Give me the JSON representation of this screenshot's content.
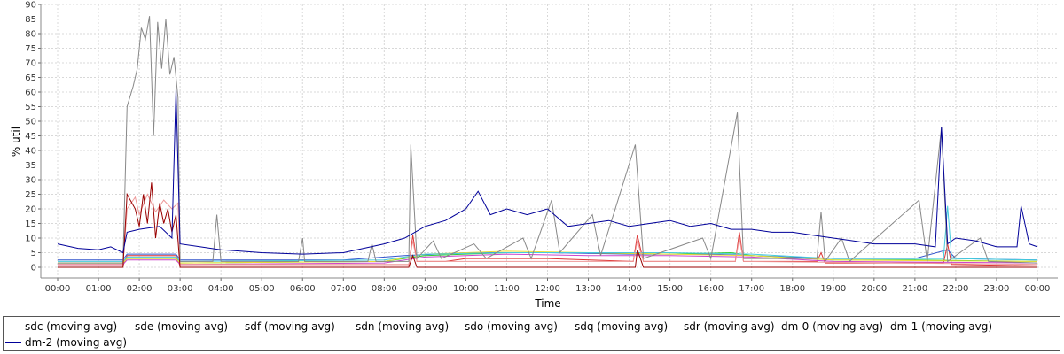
{
  "chart_data": {
    "type": "line",
    "xlabel": "Time",
    "ylabel": "% util",
    "ylim": [
      0,
      90
    ],
    "yticks": [
      0,
      5,
      10,
      15,
      20,
      25,
      30,
      35,
      40,
      45,
      50,
      55,
      60,
      65,
      70,
      75,
      80,
      85,
      90
    ],
    "xlim": [
      0,
      24
    ],
    "xticks": [
      "00:00",
      "01:00",
      "02:00",
      "03:00",
      "04:00",
      "05:00",
      "06:00",
      "07:00",
      "08:00",
      "09:00",
      "10:00",
      "11:00",
      "12:00",
      "13:00",
      "14:00",
      "15:00",
      "16:00",
      "17:00",
      "18:00",
      "19:00",
      "20:00",
      "21:00",
      "22:00",
      "23:00",
      "00:00"
    ],
    "grid": true,
    "legend_position": "bottom",
    "series": [
      {
        "name": "sdc (moving avg)",
        "color": "#dd3333",
        "points": [
          [
            0,
            0.5
          ],
          [
            1.6,
            0.5
          ],
          [
            1.7,
            4
          ],
          [
            2.1,
            4
          ],
          [
            2.9,
            4
          ],
          [
            3.0,
            0.5
          ],
          [
            8.6,
            0.5
          ],
          [
            8.7,
            11
          ],
          [
            8.8,
            2
          ],
          [
            9.5,
            2
          ],
          [
            10,
            3
          ],
          [
            12,
            3
          ],
          [
            14.1,
            2
          ],
          [
            14.2,
            11
          ],
          [
            14.35,
            2
          ],
          [
            16.6,
            2
          ],
          [
            16.7,
            12
          ],
          [
            16.8,
            2
          ],
          [
            18.6,
            2
          ],
          [
            18.7,
            5
          ],
          [
            18.8,
            1.5
          ],
          [
            21.7,
            1.5
          ],
          [
            21.8,
            8
          ],
          [
            21.9,
            1
          ],
          [
            24,
            0.5
          ]
        ]
      },
      {
        "name": "sde (moving avg)",
        "color": "#3355cc",
        "points": [
          [
            0,
            2.5
          ],
          [
            1.6,
            2.5
          ],
          [
            1.7,
            4.5
          ],
          [
            2.9,
            4.5
          ],
          [
            3.0,
            2.5
          ],
          [
            7,
            2.5
          ],
          [
            8.5,
            4
          ],
          [
            10,
            5
          ],
          [
            12,
            5
          ],
          [
            14,
            4.5
          ],
          [
            16,
            4.5
          ],
          [
            17,
            4
          ],
          [
            19,
            3
          ],
          [
            21,
            3
          ],
          [
            21.8,
            6
          ],
          [
            22,
            3
          ],
          [
            24,
            2.5
          ]
        ]
      },
      {
        "name": "sdf (moving avg)",
        "color": "#33cc33",
        "points": [
          [
            0,
            1.5
          ],
          [
            1.6,
            1.5
          ],
          [
            1.7,
            3
          ],
          [
            2.9,
            3
          ],
          [
            3.0,
            1.5
          ],
          [
            8,
            2
          ],
          [
            9,
            4
          ],
          [
            11,
            5
          ],
          [
            13,
            5
          ],
          [
            15,
            4.5
          ],
          [
            16.5,
            5
          ],
          [
            17,
            4
          ],
          [
            19,
            2.5
          ],
          [
            21,
            2.5
          ],
          [
            24,
            2
          ]
        ]
      },
      {
        "name": "sdn (moving avg)",
        "color": "#eedd33",
        "points": [
          [
            0,
            1.5
          ],
          [
            1.6,
            1.5
          ],
          [
            1.7,
            3
          ],
          [
            2.9,
            3
          ],
          [
            3.0,
            1.5
          ],
          [
            8,
            2
          ],
          [
            9,
            4.5
          ],
          [
            11,
            5.5
          ],
          [
            13,
            5
          ],
          [
            15,
            4.5
          ],
          [
            17,
            4
          ],
          [
            19,
            2.5
          ],
          [
            24,
            2
          ]
        ]
      },
      {
        "name": "sdo (moving avg)",
        "color": "#cc44cc",
        "points": [
          [
            0,
            1
          ],
          [
            1.6,
            1
          ],
          [
            1.7,
            2.5
          ],
          [
            2.9,
            2.5
          ],
          [
            3.0,
            1
          ],
          [
            8,
            1.5
          ],
          [
            9,
            3.5
          ],
          [
            11,
            4.5
          ],
          [
            13,
            4
          ],
          [
            15,
            4
          ],
          [
            17,
            3.5
          ],
          [
            19,
            2
          ],
          [
            24,
            1.5
          ]
        ]
      },
      {
        "name": "sdq (moving avg)",
        "color": "#44ccdd",
        "points": [
          [
            0,
            2
          ],
          [
            1.6,
            2
          ],
          [
            1.7,
            3.5
          ],
          [
            2.9,
            3.5
          ],
          [
            3.0,
            2
          ],
          [
            8,
            2.5
          ],
          [
            9,
            4.5
          ],
          [
            11,
            5
          ],
          [
            13,
            5
          ],
          [
            15,
            5
          ],
          [
            17,
            4.5
          ],
          [
            19,
            3
          ],
          [
            21.7,
            3
          ],
          [
            21.8,
            21
          ],
          [
            21.9,
            3
          ],
          [
            24,
            2.5
          ]
        ]
      },
      {
        "name": "sdr (moving avg)",
        "color": "#ee9999",
        "points": [
          [
            0,
            1
          ],
          [
            1.6,
            1
          ],
          [
            1.7,
            20
          ],
          [
            1.9,
            24
          ],
          [
            2.0,
            18
          ],
          [
            2.2,
            25
          ],
          [
            2.4,
            19
          ],
          [
            2.6,
            23
          ],
          [
            2.8,
            20
          ],
          [
            2.95,
            22
          ],
          [
            3.0,
            1
          ],
          [
            8.6,
            1
          ],
          [
            8.7,
            9
          ],
          [
            8.8,
            2
          ],
          [
            14.1,
            2
          ],
          [
            14.2,
            9
          ],
          [
            14.35,
            2
          ],
          [
            16.6,
            2
          ],
          [
            16.7,
            10
          ],
          [
            16.8,
            2
          ],
          [
            24,
            1
          ]
        ]
      },
      {
        "name": "dm-0 (moving avg)",
        "color": "#888888",
        "points": [
          [
            0,
            1.5
          ],
          [
            1.6,
            1.5
          ],
          [
            1.7,
            55
          ],
          [
            1.85,
            62
          ],
          [
            1.95,
            68
          ],
          [
            2.05,
            82
          ],
          [
            2.15,
            78
          ],
          [
            2.25,
            86
          ],
          [
            2.35,
            45
          ],
          [
            2.45,
            84
          ],
          [
            2.55,
            68
          ],
          [
            2.65,
            85
          ],
          [
            2.75,
            66
          ],
          [
            2.85,
            72
          ],
          [
            2.95,
            58
          ],
          [
            3.0,
            2
          ],
          [
            3.8,
            2
          ],
          [
            3.9,
            18
          ],
          [
            4.0,
            2
          ],
          [
            5.9,
            2
          ],
          [
            6.0,
            10
          ],
          [
            6.05,
            2
          ],
          [
            7.6,
            2
          ],
          [
            7.7,
            8
          ],
          [
            7.8,
            2
          ],
          [
            8.6,
            2
          ],
          [
            8.65,
            42
          ],
          [
            8.8,
            3
          ],
          [
            9.2,
            9
          ],
          [
            9.4,
            3
          ],
          [
            10.2,
            8
          ],
          [
            10.5,
            3
          ],
          [
            11.4,
            10
          ],
          [
            11.6,
            3
          ],
          [
            12.1,
            23
          ],
          [
            12.3,
            5
          ],
          [
            13.1,
            18
          ],
          [
            13.3,
            4
          ],
          [
            14.15,
            42
          ],
          [
            14.35,
            3
          ],
          [
            15.8,
            10
          ],
          [
            16.0,
            3
          ],
          [
            16.65,
            53
          ],
          [
            16.8,
            3
          ],
          [
            18.6,
            3
          ],
          [
            18.7,
            19
          ],
          [
            18.8,
            2
          ],
          [
            19.2,
            10
          ],
          [
            19.4,
            2
          ],
          [
            21.1,
            23
          ],
          [
            21.3,
            2
          ],
          [
            21.65,
            48
          ],
          [
            21.8,
            2
          ],
          [
            22.6,
            10
          ],
          [
            22.8,
            2
          ],
          [
            24,
            1.5
          ]
        ]
      },
      {
        "name": "dm-1 (moving avg)",
        "color": "#990000",
        "points": [
          [
            0,
            0
          ],
          [
            1.6,
            0
          ],
          [
            1.7,
            25
          ],
          [
            1.9,
            20
          ],
          [
            2.0,
            14
          ],
          [
            2.1,
            25
          ],
          [
            2.2,
            15
          ],
          [
            2.3,
            29
          ],
          [
            2.4,
            10
          ],
          [
            2.5,
            22
          ],
          [
            2.6,
            15
          ],
          [
            2.7,
            20
          ],
          [
            2.8,
            12
          ],
          [
            2.9,
            18
          ],
          [
            3.0,
            0
          ],
          [
            8.6,
            0
          ],
          [
            8.7,
            4
          ],
          [
            8.8,
            0
          ],
          [
            14.15,
            0
          ],
          [
            14.2,
            6
          ],
          [
            14.35,
            0
          ],
          [
            24,
            0
          ]
        ]
      },
      {
        "name": "dm-2 (moving avg)",
        "color": "#000099",
        "points": [
          [
            0,
            8
          ],
          [
            0.5,
            6.5
          ],
          [
            1.0,
            6
          ],
          [
            1.3,
            7
          ],
          [
            1.6,
            5
          ],
          [
            1.7,
            12
          ],
          [
            2.0,
            13
          ],
          [
            2.5,
            14
          ],
          [
            2.8,
            10
          ],
          [
            2.9,
            61
          ],
          [
            3.0,
            8
          ],
          [
            3.5,
            7
          ],
          [
            4,
            6
          ],
          [
            5,
            5
          ],
          [
            6,
            4.5
          ],
          [
            7,
            5
          ],
          [
            8,
            8
          ],
          [
            8.5,
            10
          ],
          [
            9,
            14
          ],
          [
            9.5,
            16
          ],
          [
            10,
            20
          ],
          [
            10.3,
            26
          ],
          [
            10.6,
            18
          ],
          [
            11,
            20
          ],
          [
            11.5,
            18
          ],
          [
            12,
            20
          ],
          [
            12.5,
            14
          ],
          [
            13,
            15
          ],
          [
            13.5,
            16
          ],
          [
            14,
            14
          ],
          [
            14.5,
            15
          ],
          [
            15,
            16
          ],
          [
            15.5,
            14
          ],
          [
            16,
            15
          ],
          [
            16.5,
            13
          ],
          [
            17,
            13
          ],
          [
            17.5,
            12
          ],
          [
            18,
            12
          ],
          [
            18.5,
            11
          ],
          [
            19,
            10
          ],
          [
            19.5,
            9
          ],
          [
            20,
            8
          ],
          [
            21,
            8
          ],
          [
            21.5,
            7
          ],
          [
            21.65,
            48
          ],
          [
            21.8,
            8
          ],
          [
            22,
            10
          ],
          [
            22.5,
            9
          ],
          [
            23,
            7
          ],
          [
            23.5,
            7
          ],
          [
            23.6,
            21
          ],
          [
            23.8,
            8
          ],
          [
            24,
            7
          ]
        ]
      }
    ]
  }
}
